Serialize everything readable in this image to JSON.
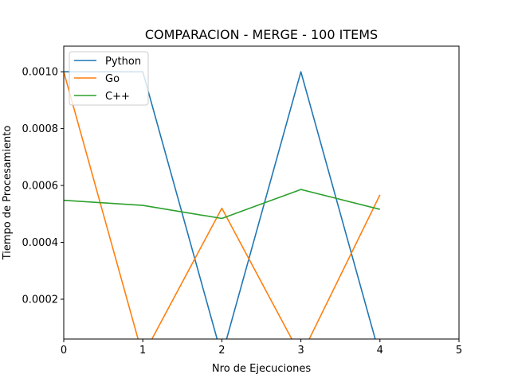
{
  "chart_data": {
    "type": "line",
    "title": "COMPARACION - MERGE - 100 ITEMS",
    "xlabel": "Nro de Ejecuciones",
    "ylabel": "Tiempo de Procesamiento",
    "x": [
      0,
      1,
      2,
      3,
      4
    ],
    "xlim": [
      0,
      5
    ],
    "ylim": [
      6e-05,
      0.00109
    ],
    "xticks": [
      "0",
      "1",
      "2",
      "3",
      "4",
      "5"
    ],
    "xtick_values": [
      0,
      1,
      2,
      3,
      4,
      5
    ],
    "yticks": [
      "0.0002",
      "0.0004",
      "0.0006",
      "0.0008",
      "0.0010"
    ],
    "ytick_values": [
      0.0002,
      0.0004,
      0.0006,
      0.0008,
      0.001
    ],
    "grid": false,
    "legend_position": "top-left",
    "series": [
      {
        "name": "Python",
        "color": "#1f77b4",
        "values": [
          0.001,
          0.001,
          0.0,
          0.001,
          0.0
        ]
      },
      {
        "name": "Go",
        "color": "#ff7f0e",
        "values": [
          0.001,
          0.0,
          0.00052,
          0.0,
          0.000567
        ]
      },
      {
        "name": "C++",
        "color": "#2ca02c",
        "values": [
          0.000548,
          0.00053,
          0.000484,
          0.000586,
          0.000516
        ]
      }
    ]
  }
}
